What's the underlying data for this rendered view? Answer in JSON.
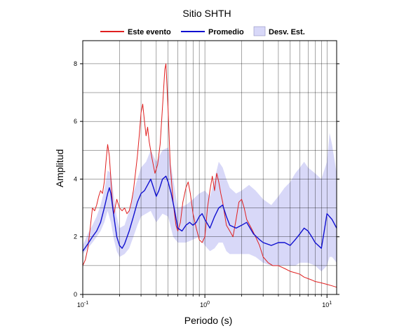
{
  "chart_data": {
    "type": "line",
    "title": "Sitio SHTH",
    "xlabel": "Periodo (s)",
    "ylabel": "Amplitud",
    "x_scale": "log",
    "xlim": [
      0.1,
      12
    ],
    "ylim": [
      0,
      8.8
    ],
    "x_ticks": [
      {
        "value": 0.1,
        "base": "10",
        "exp": "-1"
      },
      {
        "value": 1,
        "base": "10",
        "exp": "0"
      },
      {
        "value": 10,
        "base": "10",
        "exp": "1"
      }
    ],
    "y_ticks": [
      0,
      2,
      4,
      6,
      8
    ],
    "grid": true,
    "legend_position": "top",
    "legend": [
      {
        "label": "Este evento",
        "color": "#e02020",
        "kind": "line"
      },
      {
        "label": "Promedio",
        "color": "#1010d0",
        "kind": "line"
      },
      {
        "label": "Desv. Est.",
        "color": "#d8d8f8",
        "kind": "patch"
      }
    ],
    "series": [
      {
        "name": "Este evento",
        "color": "#e02020",
        "points": [
          [
            0.1,
            1.0
          ],
          [
            0.105,
            1.2
          ],
          [
            0.11,
            1.6
          ],
          [
            0.115,
            2.3
          ],
          [
            0.12,
            3.0
          ],
          [
            0.125,
            2.9
          ],
          [
            0.13,
            3.1
          ],
          [
            0.135,
            3.4
          ],
          [
            0.14,
            3.6
          ],
          [
            0.145,
            3.5
          ],
          [
            0.15,
            3.9
          ],
          [
            0.155,
            4.6
          ],
          [
            0.16,
            5.2
          ],
          [
            0.165,
            4.8
          ],
          [
            0.17,
            4.0
          ],
          [
            0.175,
            3.2
          ],
          [
            0.18,
            2.8
          ],
          [
            0.19,
            3.3
          ],
          [
            0.2,
            3.0
          ],
          [
            0.21,
            2.9
          ],
          [
            0.22,
            3.0
          ],
          [
            0.23,
            2.8
          ],
          [
            0.24,
            2.9
          ],
          [
            0.25,
            3.2
          ],
          [
            0.26,
            3.6
          ],
          [
            0.27,
            4.2
          ],
          [
            0.28,
            4.8
          ],
          [
            0.29,
            5.5
          ],
          [
            0.3,
            6.3
          ],
          [
            0.31,
            6.6
          ],
          [
            0.32,
            6.0
          ],
          [
            0.33,
            5.5
          ],
          [
            0.34,
            5.8
          ],
          [
            0.35,
            5.3
          ],
          [
            0.37,
            4.7
          ],
          [
            0.39,
            4.2
          ],
          [
            0.41,
            4.5
          ],
          [
            0.43,
            5.2
          ],
          [
            0.45,
            6.5
          ],
          [
            0.47,
            7.8
          ],
          [
            0.48,
            8.0
          ],
          [
            0.5,
            6.4
          ],
          [
            0.52,
            4.5
          ],
          [
            0.55,
            3.2
          ],
          [
            0.58,
            2.4
          ],
          [
            0.6,
            2.2
          ],
          [
            0.63,
            2.5
          ],
          [
            0.66,
            3.2
          ],
          [
            0.7,
            3.7
          ],
          [
            0.73,
            3.9
          ],
          [
            0.76,
            3.5
          ],
          [
            0.8,
            2.8
          ],
          [
            0.85,
            2.3
          ],
          [
            0.9,
            1.9
          ],
          [
            0.95,
            1.8
          ],
          [
            1.0,
            2.0
          ],
          [
            1.05,
            3.0
          ],
          [
            1.1,
            3.6
          ],
          [
            1.15,
            4.1
          ],
          [
            1.2,
            3.6
          ],
          [
            1.25,
            4.2
          ],
          [
            1.3,
            3.9
          ],
          [
            1.35,
            3.5
          ],
          [
            1.4,
            3.2
          ],
          [
            1.5,
            2.4
          ],
          [
            1.6,
            2.2
          ],
          [
            1.7,
            2.0
          ],
          [
            1.8,
            2.6
          ],
          [
            1.9,
            3.2
          ],
          [
            2.0,
            3.3
          ],
          [
            2.1,
            3.0
          ],
          [
            2.2,
            2.6
          ],
          [
            2.4,
            2.3
          ],
          [
            2.6,
            2.0
          ],
          [
            2.8,
            1.7
          ],
          [
            3.0,
            1.3
          ],
          [
            3.3,
            1.1
          ],
          [
            3.6,
            1.0
          ],
          [
            4.0,
            1.0
          ],
          [
            4.5,
            0.9
          ],
          [
            5.0,
            0.8
          ],
          [
            5.5,
            0.75
          ],
          [
            6.0,
            0.7
          ],
          [
            6.5,
            0.6
          ],
          [
            7.0,
            0.55
          ],
          [
            7.5,
            0.5
          ],
          [
            8.0,
            0.45
          ],
          [
            9.0,
            0.4
          ],
          [
            10.0,
            0.35
          ],
          [
            11.0,
            0.3
          ],
          [
            12.0,
            0.25
          ]
        ]
      },
      {
        "name": "Promedio",
        "color": "#1010d0",
        "points": [
          [
            0.1,
            1.5
          ],
          [
            0.11,
            1.75
          ],
          [
            0.12,
            2.0
          ],
          [
            0.13,
            2.2
          ],
          [
            0.14,
            2.5
          ],
          [
            0.15,
            3.0
          ],
          [
            0.16,
            3.5
          ],
          [
            0.165,
            3.7
          ],
          [
            0.17,
            3.5
          ],
          [
            0.18,
            2.7
          ],
          [
            0.19,
            2.0
          ],
          [
            0.2,
            1.7
          ],
          [
            0.21,
            1.6
          ],
          [
            0.22,
            1.75
          ],
          [
            0.24,
            2.2
          ],
          [
            0.26,
            2.7
          ],
          [
            0.28,
            3.2
          ],
          [
            0.3,
            3.5
          ],
          [
            0.32,
            3.6
          ],
          [
            0.34,
            3.8
          ],
          [
            0.36,
            4.0
          ],
          [
            0.38,
            3.7
          ],
          [
            0.4,
            3.4
          ],
          [
            0.42,
            3.6
          ],
          [
            0.45,
            4.0
          ],
          [
            0.48,
            4.1
          ],
          [
            0.5,
            3.9
          ],
          [
            0.53,
            3.5
          ],
          [
            0.56,
            3.0
          ],
          [
            0.6,
            2.3
          ],
          [
            0.65,
            2.2
          ],
          [
            0.7,
            2.4
          ],
          [
            0.75,
            2.5
          ],
          [
            0.8,
            2.4
          ],
          [
            0.85,
            2.5
          ],
          [
            0.9,
            2.7
          ],
          [
            0.95,
            2.8
          ],
          [
            1.0,
            2.6
          ],
          [
            1.1,
            2.3
          ],
          [
            1.2,
            2.7
          ],
          [
            1.3,
            3.0
          ],
          [
            1.4,
            3.1
          ],
          [
            1.5,
            2.7
          ],
          [
            1.6,
            2.4
          ],
          [
            1.8,
            2.3
          ],
          [
            2.0,
            2.4
          ],
          [
            2.2,
            2.5
          ],
          [
            2.5,
            2.1
          ],
          [
            2.8,
            1.9
          ],
          [
            3.0,
            1.8
          ],
          [
            3.5,
            1.7
          ],
          [
            4.0,
            1.8
          ],
          [
            4.5,
            1.8
          ],
          [
            5.0,
            1.7
          ],
          [
            5.5,
            1.9
          ],
          [
            6.0,
            2.1
          ],
          [
            6.5,
            2.3
          ],
          [
            7.0,
            2.2
          ],
          [
            7.5,
            2.0
          ],
          [
            8.0,
            1.8
          ],
          [
            9.0,
            1.6
          ],
          [
            9.5,
            2.2
          ],
          [
            10.0,
            2.8
          ],
          [
            11.0,
            2.6
          ],
          [
            12.0,
            2.3
          ]
        ]
      }
    ],
    "std_band": {
      "name": "Desv. Est.",
      "color": "#d8d8f8",
      "points": [
        [
          0.1,
          1.4,
          1.7
        ],
        [
          0.11,
          1.6,
          2.1
        ],
        [
          0.12,
          1.8,
          2.4
        ],
        [
          0.13,
          2.0,
          2.7
        ],
        [
          0.14,
          2.2,
          3.1
        ],
        [
          0.15,
          2.5,
          3.6
        ],
        [
          0.16,
          2.9,
          4.3
        ],
        [
          0.17,
          2.5,
          4.2
        ],
        [
          0.18,
          1.9,
          3.4
        ],
        [
          0.19,
          1.5,
          2.7
        ],
        [
          0.2,
          1.3,
          2.3
        ],
        [
          0.22,
          1.4,
          2.4
        ],
        [
          0.24,
          1.6,
          2.9
        ],
        [
          0.26,
          2.0,
          3.5
        ],
        [
          0.28,
          2.4,
          4.0
        ],
        [
          0.3,
          2.7,
          4.4
        ],
        [
          0.33,
          2.8,
          4.6
        ],
        [
          0.36,
          2.9,
          5.0
        ],
        [
          0.4,
          2.5,
          4.6
        ],
        [
          0.45,
          2.8,
          5.0
        ],
        [
          0.5,
          2.7,
          5.1
        ],
        [
          0.55,
          2.0,
          4.0
        ],
        [
          0.6,
          1.8,
          3.0
        ],
        [
          0.7,
          1.8,
          3.1
        ],
        [
          0.8,
          1.9,
          3.3
        ],
        [
          0.9,
          2.0,
          3.5
        ],
        [
          1.0,
          1.7,
          3.6
        ],
        [
          1.1,
          1.5,
          3.4
        ],
        [
          1.2,
          1.6,
          4.0
        ],
        [
          1.3,
          1.8,
          4.6
        ],
        [
          1.4,
          1.8,
          4.4
        ],
        [
          1.5,
          1.5,
          4.0
        ],
        [
          1.6,
          1.4,
          3.7
        ],
        [
          1.8,
          1.4,
          3.5
        ],
        [
          2.0,
          1.4,
          3.6
        ],
        [
          2.3,
          1.4,
          3.8
        ],
        [
          2.6,
          1.3,
          3.6
        ],
        [
          3.0,
          1.1,
          3.3
        ],
        [
          3.5,
          1.0,
          3.1
        ],
        [
          4.0,
          1.0,
          3.4
        ],
        [
          4.5,
          1.0,
          3.7
        ],
        [
          5.0,
          1.0,
          3.9
        ],
        [
          5.5,
          1.0,
          4.2
        ],
        [
          6.0,
          1.1,
          4.4
        ],
        [
          6.5,
          1.1,
          4.6
        ],
        [
          7.0,
          1.1,
          4.4
        ],
        [
          8.0,
          1.0,
          4.2
        ],
        [
          9.0,
          0.8,
          4.0
        ],
        [
          10.0,
          1.0,
          4.6
        ],
        [
          10.5,
          1.3,
          5.6
        ],
        [
          11.0,
          1.3,
          5.2
        ],
        [
          12.0,
          1.1,
          4.2
        ]
      ]
    }
  }
}
